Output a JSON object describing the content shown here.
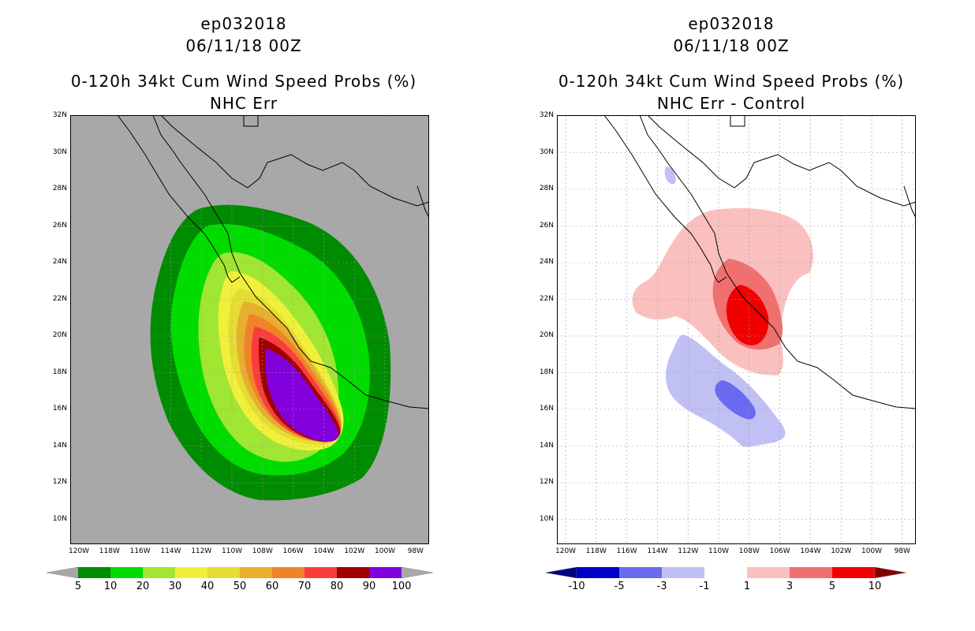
{
  "left_panel": {
    "storm_id": "ep032018",
    "datetime": "06/11/18 00Z",
    "product": "0-120h 34kt Cum Wind Speed Probs (%)",
    "subtitle": "NHC Err",
    "legend_labels": [
      "5",
      "10",
      "20",
      "30",
      "40",
      "50",
      "60",
      "70",
      "80",
      "90",
      "100"
    ],
    "legend_colors": [
      "#008c00",
      "#00dc00",
      "#a0e632",
      "#f0f03c",
      "#e6dc32",
      "#e6af2d",
      "#f08228",
      "#fa3c3c",
      "#a00000",
      "#8200dc"
    ],
    "land_color": "#a8a8a8"
  },
  "right_panel": {
    "storm_id": "ep032018",
    "datetime": "06/11/18 00Z",
    "product": "0-120h 34kt Cum Wind Speed Probs (%)",
    "subtitle": "NHC Err - Control",
    "legend_labels": [
      "-10",
      "-5",
      "-3",
      "-1",
      "1",
      "3",
      "5",
      "10"
    ],
    "legend_colors": [
      "#0000c8",
      "#6a6af0",
      "#c0c0f5",
      "#ffffff",
      "#fac0c0",
      "#f07070",
      "#f00000"
    ]
  },
  "lat_labels": [
    "32N",
    "30N",
    "28N",
    "26N",
    "24N",
    "22N",
    "20N",
    "18N",
    "16N",
    "14N",
    "12N",
    "10N"
  ],
  "lon_labels": [
    "120W",
    "118W",
    "116W",
    "114W",
    "112W",
    "110W",
    "108W",
    "106W",
    "104W",
    "102W",
    "100W",
    "98W"
  ]
}
